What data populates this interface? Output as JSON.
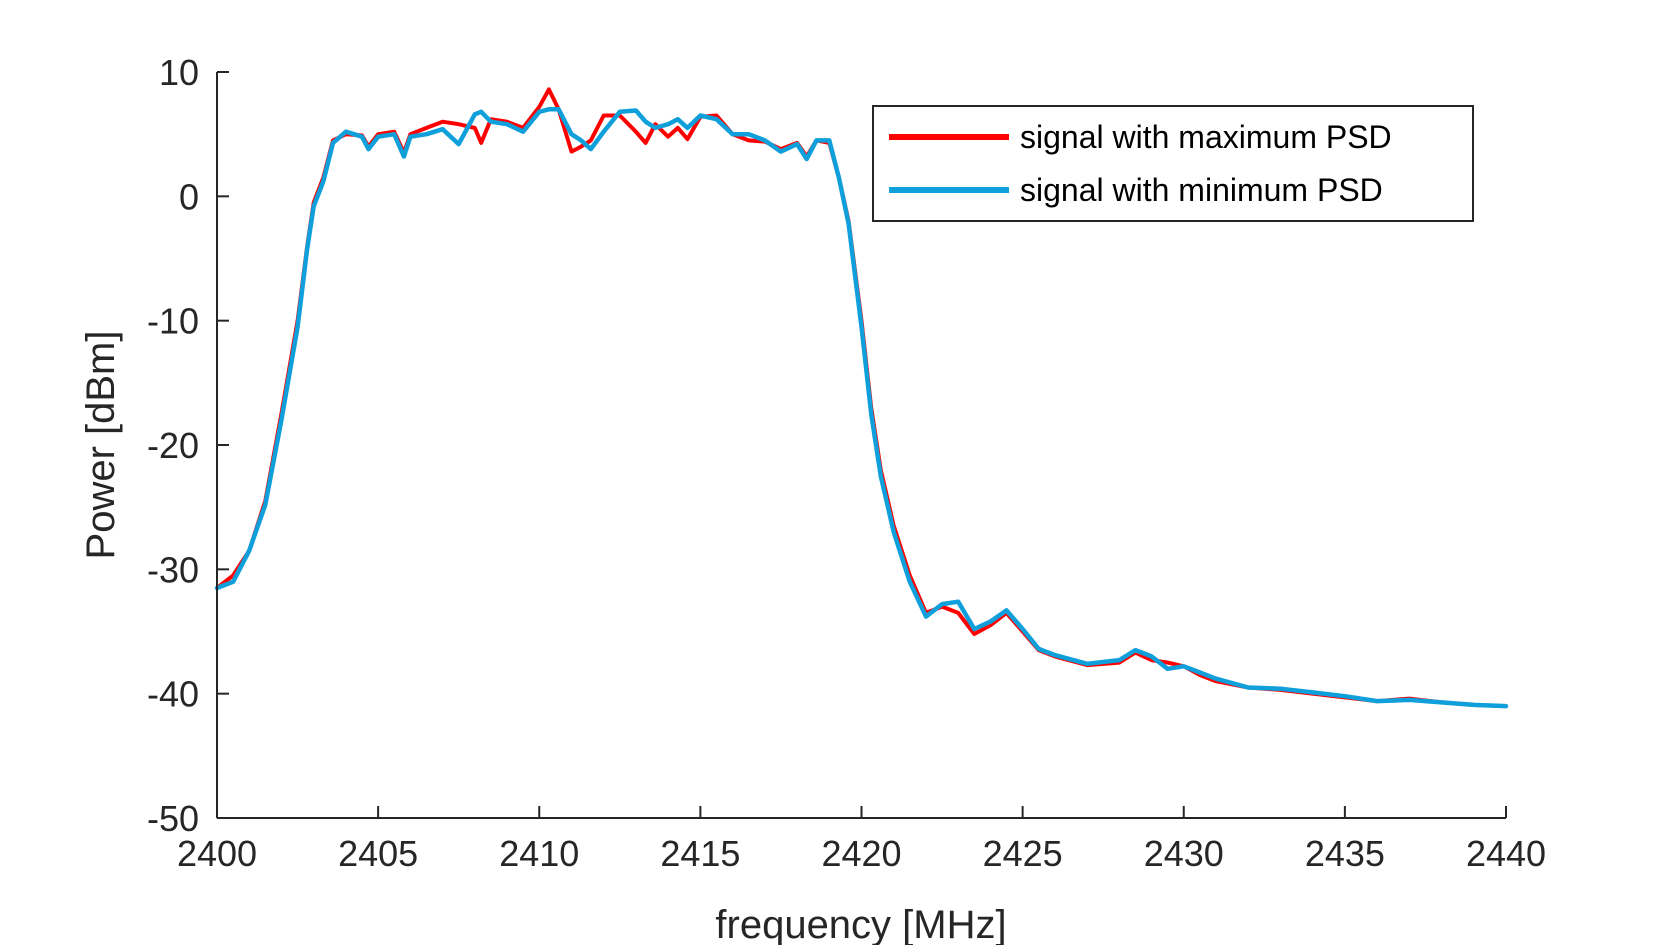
{
  "chart_data": {
    "type": "line",
    "title": "",
    "xlabel": "frequency [MHz]",
    "ylabel": "Power [dBm]",
    "xlim": [
      2400,
      2440
    ],
    "ylim": [
      -50,
      10
    ],
    "xticks": [
      2400,
      2405,
      2410,
      2415,
      2420,
      2425,
      2430,
      2435,
      2440
    ],
    "xtick_labels": [
      "2400",
      "2405",
      "2410",
      "2415",
      "2420",
      "2425",
      "2430",
      "2435",
      "2440"
    ],
    "yticks": [
      10,
      0,
      -10,
      -20,
      -30,
      -40,
      -50
    ],
    "ytick_labels": [
      "10",
      "0",
      "-10",
      "-20",
      "-30",
      "-40",
      "-50"
    ],
    "grid": false,
    "legend_position": "top-right",
    "series": [
      {
        "name": "signal with maximum PSD",
        "color": "#ff0000",
        "x": [
          2400,
          2400.5,
          2401,
          2401.5,
          2402,
          2402.5,
          2402.8,
          2403,
          2403.3,
          2403.6,
          2404,
          2404.5,
          2404.7,
          2405,
          2405.5,
          2405.8,
          2406,
          2406.5,
          2407,
          2407.5,
          2408,
          2408.2,
          2408.5,
          2409,
          2409.5,
          2410,
          2410.3,
          2410.6,
          2411,
          2411.3,
          2411.6,
          2412,
          2412.5,
          2413,
          2413.3,
          2413.6,
          2414,
          2414.3,
          2414.6,
          2415,
          2415.5,
          2416,
          2416.5,
          2417,
          2417.5,
          2418,
          2418.3,
          2418.6,
          2419,
          2419.3,
          2419.6,
          2420,
          2420.3,
          2420.6,
          2421,
          2421.5,
          2422,
          2422.5,
          2423,
          2423.5,
          2424,
          2424.5,
          2425,
          2425.5,
          2426,
          2427,
          2428,
          2428.5,
          2429,
          2429.5,
          2430,
          2430.5,
          2431,
          2432,
          2433,
          2434,
          2435,
          2436,
          2437,
          2438,
          2439,
          2440
        ],
        "y": [
          -31.5,
          -30.5,
          -28.5,
          -24.5,
          -17.5,
          -10,
          -4,
          -0.5,
          1.5,
          4.5,
          5,
          4.9,
          4,
          5,
          5.2,
          3.5,
          5,
          5.5,
          6,
          5.8,
          5.5,
          4.3,
          6.2,
          6,
          5.5,
          7.2,
          8.6,
          7,
          3.6,
          4,
          4.5,
          6.5,
          6.5,
          5.2,
          4.3,
          5.8,
          4.8,
          5.5,
          4.6,
          6.4,
          6.5,
          5,
          4.5,
          4.4,
          3.8,
          4.3,
          3.2,
          4.5,
          4.3,
          1.5,
          -2,
          -10,
          -17,
          -22,
          -26.5,
          -30.5,
          -33.5,
          -33,
          -33.5,
          -35.2,
          -34.5,
          -33.5,
          -35,
          -36.5,
          -37,
          -37.7,
          -37.5,
          -36.7,
          -37.3,
          -37.5,
          -37.8,
          -38.5,
          -39,
          -39.5,
          -39.7,
          -40,
          -40.3,
          -40.6,
          -40.4,
          -40.7,
          -40.9,
          -41
        ]
      },
      {
        "name": "signal with minimum PSD",
        "color": "#0fa0dc",
        "x": [
          2400,
          2400.5,
          2401,
          2401.5,
          2402,
          2402.5,
          2402.8,
          2403,
          2403.3,
          2403.6,
          2404,
          2404.5,
          2404.7,
          2405,
          2405.5,
          2405.8,
          2406,
          2406.5,
          2407,
          2407.5,
          2408,
          2408.2,
          2408.5,
          2409,
          2409.5,
          2410,
          2410.3,
          2410.6,
          2411,
          2411.3,
          2411.6,
          2412,
          2412.5,
          2413,
          2413.3,
          2413.6,
          2414,
          2414.3,
          2414.6,
          2415,
          2415.5,
          2416,
          2416.5,
          2417,
          2417.5,
          2418,
          2418.3,
          2418.6,
          2419,
          2419.3,
          2419.6,
          2420,
          2420.3,
          2420.6,
          2421,
          2421.5,
          2422,
          2422.5,
          2423,
          2423.5,
          2424,
          2424.5,
          2425,
          2425.5,
          2426,
          2427,
          2428,
          2428.5,
          2429,
          2429.5,
          2430,
          2430.5,
          2431,
          2432,
          2433,
          2434,
          2435,
          2436,
          2437,
          2438,
          2439,
          2440
        ],
        "y": [
          -31.5,
          -31,
          -28.5,
          -24.8,
          -18,
          -10.5,
          -4.2,
          -0.8,
          1.2,
          4.3,
          5.2,
          4.8,
          3.8,
          4.8,
          5,
          3.2,
          4.8,
          5,
          5.4,
          4.2,
          6.6,
          6.8,
          6,
          5.8,
          5.2,
          6.8,
          7,
          7,
          5,
          4.5,
          3.8,
          5.2,
          6.8,
          6.9,
          6,
          5.5,
          5.8,
          6.2,
          5.5,
          6.5,
          6.2,
          5,
          5,
          4.5,
          3.6,
          4.2,
          3,
          4.5,
          4.5,
          1.5,
          -2.2,
          -10.5,
          -17.5,
          -22.5,
          -27,
          -31,
          -33.8,
          -32.8,
          -32.6,
          -34.8,
          -34.2,
          -33.3,
          -34.8,
          -36.4,
          -36.9,
          -37.6,
          -37.3,
          -36.5,
          -37,
          -38,
          -37.8,
          -38.3,
          -38.8,
          -39.5,
          -39.6,
          -39.9,
          -40.2,
          -40.6,
          -40.5,
          -40.7,
          -40.9,
          -41
        ]
      }
    ]
  }
}
